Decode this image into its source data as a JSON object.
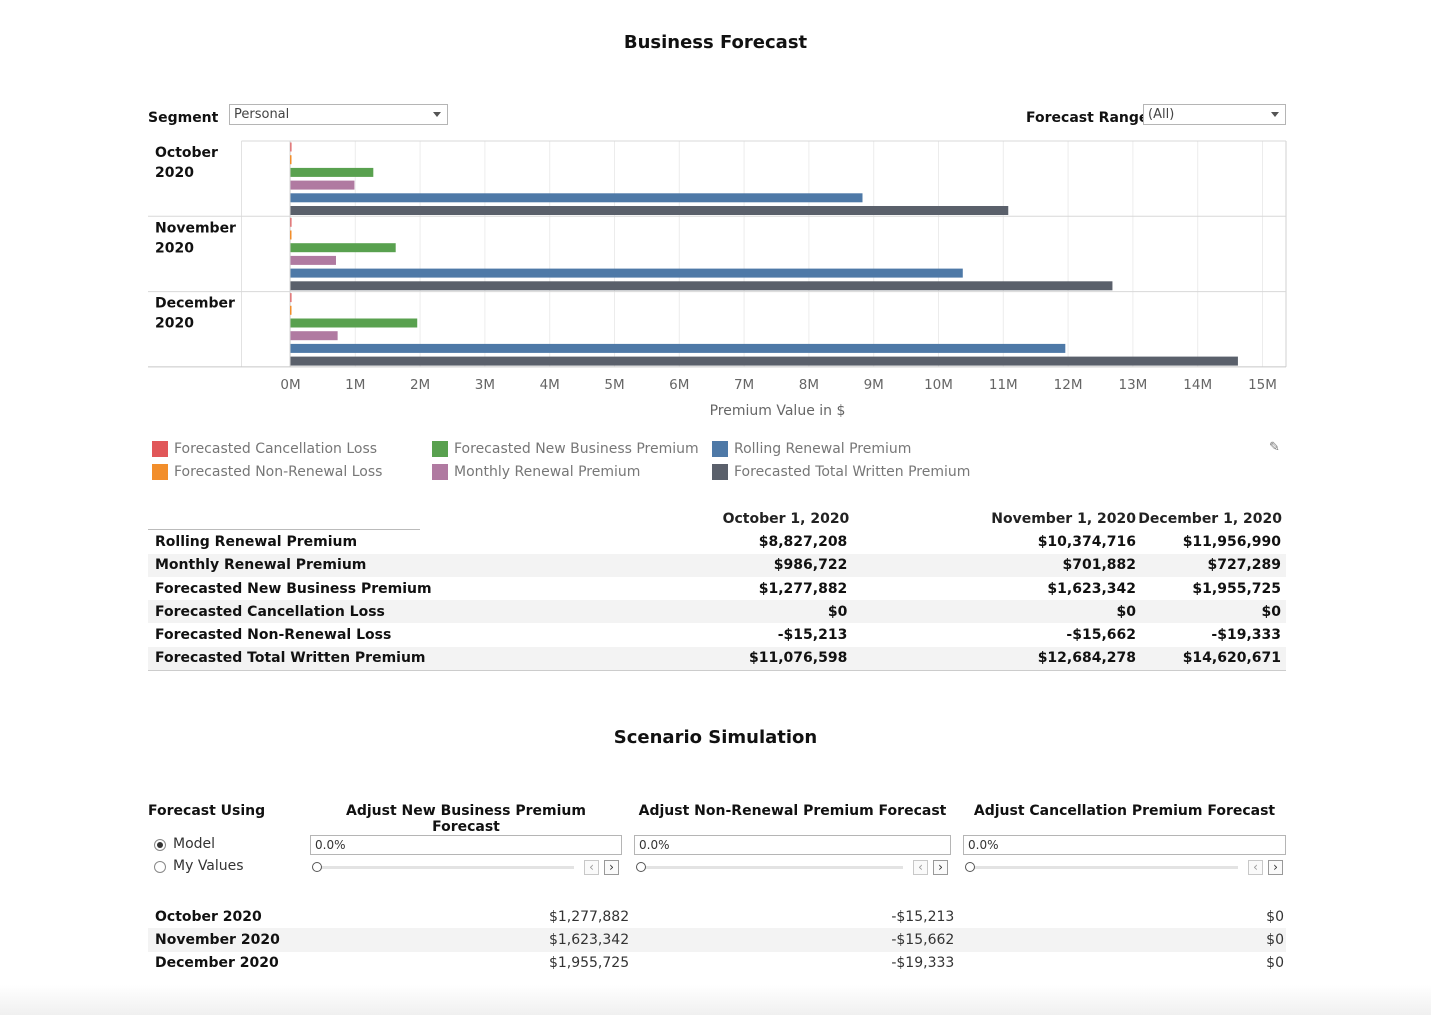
{
  "page": {
    "title": "Business Forecast",
    "scenario_title": "Scenario Simulation"
  },
  "filters": {
    "segment_label": "Segment",
    "segment_value": "Personal",
    "range_label": "Forecast Range",
    "range_value": "(All)"
  },
  "chart_data": {
    "type": "bar",
    "orientation": "horizontal",
    "categories": [
      "October 2020",
      "November 2020",
      "December 2020"
    ],
    "category_lines": [
      [
        "October",
        "2020"
      ],
      [
        "November",
        "2020"
      ],
      [
        "December",
        "2020"
      ]
    ],
    "series": [
      {
        "name": "Forecasted Cancellation Loss",
        "color": "#e15759",
        "values": [
          0,
          0,
          0
        ]
      },
      {
        "name": "Forecasted Non-Renewal Loss",
        "color": "#f28e2b",
        "values": [
          -15213,
          -15662,
          -19333
        ]
      },
      {
        "name": "Forecasted New Business Premium",
        "color": "#59a14f",
        "values": [
          1277882,
          1623342,
          1955725
        ]
      },
      {
        "name": "Monthly Renewal Premium",
        "color": "#b07aa1",
        "values": [
          986722,
          701882,
          727289
        ]
      },
      {
        "name": "Rolling Renewal Premium",
        "color": "#4e79a7",
        "values": [
          8827208,
          10374716,
          11956990
        ]
      },
      {
        "name": "Forecasted Total Written Premium",
        "color": "#5a606b",
        "values": [
          11076598,
          12684278,
          14620671
        ]
      }
    ],
    "xlabel": "Premium Value in $",
    "xlim": [
      0,
      15000000
    ],
    "x_ticks": [
      "0M",
      "1M",
      "2M",
      "3M",
      "4M",
      "5M",
      "6M",
      "7M",
      "8M",
      "9M",
      "10M",
      "11M",
      "12M",
      "13M",
      "14M",
      "15M"
    ],
    "grid": true,
    "legend_placement": "bottom"
  },
  "legend": {
    "items": [
      {
        "label": "Forecasted Cancellation Loss",
        "color": "#e15759"
      },
      {
        "label": "Forecasted Non-Renewal Loss",
        "color": "#f28e2b"
      },
      {
        "label": "Forecasted New Business Premium",
        "color": "#59a14f"
      },
      {
        "label": "Monthly Renewal Premium",
        "color": "#b07aa1"
      },
      {
        "label": "Rolling Renewal Premium",
        "color": "#4e79a7"
      },
      {
        "label": "Forecasted Total Written Premium",
        "color": "#5a606b"
      }
    ]
  },
  "summary_table": {
    "columns": [
      "October 1, 2020",
      "November 1, 2020",
      "December 1, 2020"
    ],
    "rows": [
      {
        "label": "Rolling Renewal Premium",
        "values": [
          "$8,827,208",
          "$10,374,716",
          "$11,956,990"
        ]
      },
      {
        "label": "Monthly Renewal Premium",
        "values": [
          "$986,722",
          "$701,882",
          "$727,289"
        ]
      },
      {
        "label": "Forecasted New Business Premium",
        "values": [
          "$1,277,882",
          "$1,623,342",
          "$1,955,725"
        ]
      },
      {
        "label": "Forecasted Cancellation Loss",
        "values": [
          "$0",
          "$0",
          "$0"
        ]
      },
      {
        "label": "Forecasted Non-Renewal Loss",
        "values": [
          "-$15,213",
          "-$15,662",
          "-$19,333"
        ]
      },
      {
        "label": "Forecasted Total Written Premium",
        "values": [
          "$11,076,598",
          "$12,684,278",
          "$14,620,671"
        ]
      }
    ]
  },
  "scenario": {
    "forecast_using_label": "Forecast Using",
    "options": [
      "Model",
      "My Values"
    ],
    "selected": "Model",
    "adjusters": [
      {
        "title": "Adjust New Business Premium Forecast",
        "value": "0.0%"
      },
      {
        "title": "Adjust Non-Renewal Premium Forecast",
        "value": "0.0%"
      },
      {
        "title": "Adjust Cancellation Premium Forecast",
        "value": "0.0%"
      }
    ],
    "rows": [
      {
        "label": "October 2020",
        "values": [
          "$1,277,882",
          "-$15,213",
          "$0"
        ]
      },
      {
        "label": "November 2020",
        "values": [
          "$1,623,342",
          "-$15,662",
          "$0"
        ]
      },
      {
        "label": "December 2020",
        "values": [
          "$1,955,725",
          "-$19,333",
          "$0"
        ]
      }
    ]
  }
}
